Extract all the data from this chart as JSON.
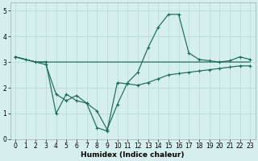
{
  "xlabel": "Humidex (Indice chaleur)",
  "bg_color": "#d5efee",
  "grid_color": "#c0dede",
  "line_color": "#1a6b5a",
  "xlim": [
    -0.5,
    23.5
  ],
  "ylim": [
    0,
    5.3
  ],
  "xticks": [
    0,
    1,
    2,
    3,
    4,
    5,
    6,
    7,
    8,
    9,
    10,
    11,
    12,
    13,
    14,
    15,
    16,
    17,
    18,
    19,
    20,
    21,
    22,
    23
  ],
  "yticks": [
    0,
    1,
    2,
    3,
    4,
    5
  ],
  "line1_x": [
    0,
    1,
    2,
    3,
    4,
    5,
    6,
    7,
    8,
    9,
    10,
    11,
    12,
    13,
    14,
    15,
    16,
    17,
    18,
    19,
    20,
    21,
    22,
    23
  ],
  "line1_y": [
    3.2,
    3.1,
    3.0,
    3.0,
    1.0,
    1.75,
    1.5,
    1.4,
    1.1,
    0.38,
    1.35,
    2.2,
    2.6,
    3.55,
    4.35,
    4.85,
    4.85,
    3.35,
    3.1,
    3.05,
    3.0,
    3.05,
    3.2,
    3.1
  ],
  "line2_x": [
    0,
    1,
    2,
    3,
    4,
    5,
    6,
    7,
    8,
    9,
    10,
    11,
    12,
    13,
    14,
    15,
    16,
    17,
    18,
    19,
    20,
    21,
    22,
    23
  ],
  "line2_y": [
    3.2,
    3.1,
    3.0,
    3.0,
    3.0,
    3.0,
    3.0,
    3.0,
    3.0,
    3.0,
    3.0,
    3.0,
    3.0,
    3.0,
    3.0,
    3.0,
    3.0,
    3.0,
    3.0,
    3.0,
    3.0,
    3.0,
    3.0,
    3.0
  ],
  "line3_x": [
    0,
    3,
    4,
    5,
    6,
    7,
    8,
    9,
    10,
    11,
    12,
    13,
    14,
    15,
    16,
    17,
    18,
    19,
    20,
    21,
    22,
    23
  ],
  "line3_y": [
    3.2,
    2.9,
    1.75,
    1.5,
    1.7,
    1.4,
    0.45,
    0.32,
    2.2,
    2.15,
    2.1,
    2.2,
    2.35,
    2.5,
    2.55,
    2.6,
    2.65,
    2.7,
    2.75,
    2.8,
    2.85,
    2.85
  ]
}
